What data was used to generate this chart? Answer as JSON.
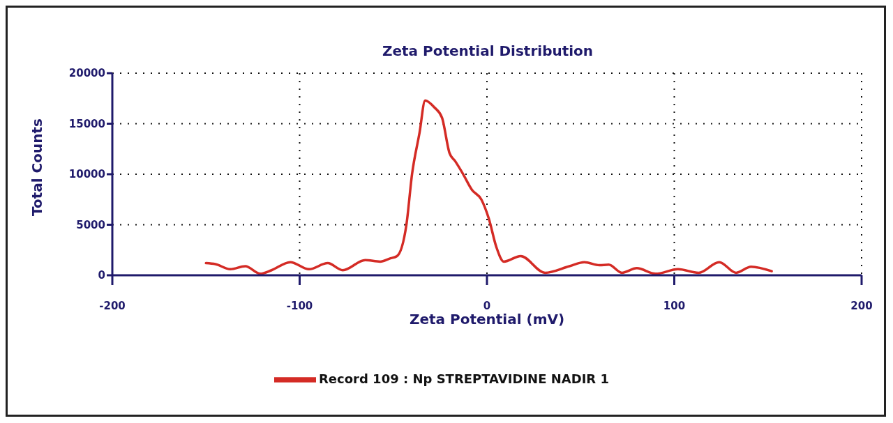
{
  "chart_data": {
    "type": "line",
    "title": "Zeta Potential Distribution",
    "xlabel": "Zeta Potential (mV)",
    "ylabel": "Total Counts",
    "xlim": [
      -200,
      200
    ],
    "xticks": [
      -200,
      -100,
      0,
      100,
      200
    ],
    "ylim": [
      0,
      20000
    ],
    "yticks": [
      0,
      5000,
      10000,
      15000,
      20000
    ],
    "grid": true,
    "legend": "bottom",
    "marker": "none",
    "line_style": "solid",
    "series": [
      {
        "name": "Record 109 : Np STREPTAVIDINE NADIR 1",
        "color": "#d42b25",
        "x": [
          -150,
          -145,
          -137,
          -129,
          -121,
          -115,
          -105,
          -95,
          -85,
          -77,
          -65,
          -57,
          -52,
          -48,
          -43,
          -40,
          -36,
          -33,
          -28,
          -24,
          -20,
          -17,
          -13,
          -8,
          -3,
          1,
          5,
          9,
          18,
          31,
          44,
          52,
          60,
          65,
          72,
          80,
          90,
          102,
          113,
          124,
          133,
          141,
          152
        ],
        "values": [
          1200,
          1100,
          600,
          900,
          150,
          500,
          1300,
          600,
          1200,
          500,
          1500,
          1350,
          1650,
          1900,
          5000,
          10000,
          14100,
          17300,
          16600,
          15600,
          12100,
          11300,
          10100,
          8450,
          7500,
          5600,
          2800,
          1350,
          1900,
          250,
          900,
          1300,
          1000,
          1050,
          250,
          700,
          150,
          600,
          250,
          1300,
          250,
          850,
          400
        ]
      }
    ]
  }
}
